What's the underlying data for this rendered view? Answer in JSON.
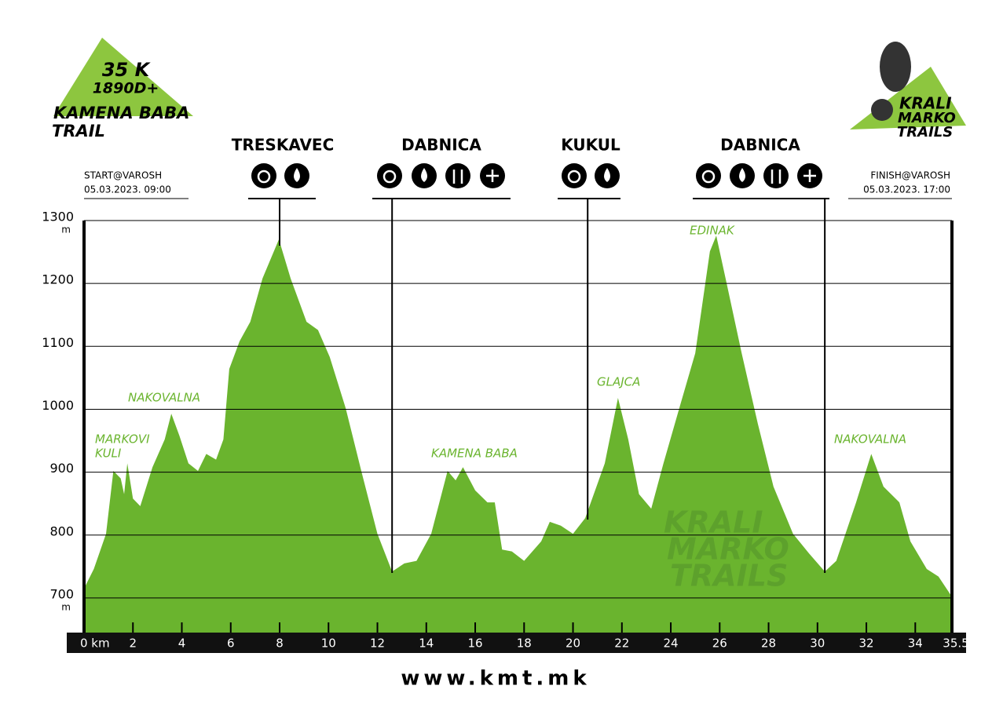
{
  "chart_data": {
    "type": "area",
    "logo": {
      "distance": "35 K",
      "elevation_gain": "1890D+",
      "name": "KAMENA BABA",
      "trail": "TRAIL"
    },
    "brand": [
      "KRALI",
      "MARKO",
      "TRAILS"
    ],
    "start": {
      "label": "START@VAROSH",
      "time": "05.03.2023. 09:00"
    },
    "finish": {
      "label": "FINISH@VAROSH",
      "time": "05.03.2023. 17:00"
    },
    "stations": [
      {
        "name": "TRESKAVEC",
        "km": 8.0
      },
      {
        "name": "DABNICA",
        "km": 12.6
      },
      {
        "name": "KUKUL",
        "km": 20.6
      },
      {
        "name": "DABNICA",
        "km": 30.3
      }
    ],
    "peaks": [
      "MARKOVI",
      "KULI",
      "NAKOVALNA",
      "KAMENA BABA",
      "GLAJCA",
      "EDINAK",
      "NAKOVALNA"
    ],
    "y_unit": "m",
    "color": "#6ab42e",
    "x": [
      0,
      0.4,
      0.9,
      1.2,
      1.5,
      1.64,
      1.77,
      2.0,
      2.3,
      2.8,
      3.3,
      3.57,
      3.9,
      4.27,
      4.66,
      5.0,
      5.4,
      5.7,
      5.94,
      6.36,
      6.8,
      7.3,
      7.97,
      8.45,
      9.1,
      9.57,
      10.05,
      10.7,
      11.34,
      12.0,
      12.6,
      13.1,
      13.6,
      14.2,
      14.87,
      15.2,
      15.5,
      16.0,
      16.5,
      16.8,
      17.1,
      17.5,
      18.0,
      18.7,
      19.05,
      19.5,
      20.0,
      20.5,
      21.3,
      21.84,
      22.26,
      22.7,
      23.2,
      23.7,
      24.35,
      25.0,
      25.6,
      25.86,
      26.28,
      26.9,
      27.56,
      28.2,
      29.0,
      29.65,
      30.3,
      30.77,
      31.58,
      32.2,
      32.7,
      33.35,
      33.8,
      34.47,
      34.95,
      35.5
    ],
    "y": [
      715,
      746,
      802,
      902,
      890,
      865,
      914,
      858,
      846,
      908,
      952,
      993,
      958,
      914,
      902,
      929,
      920,
      952,
      1064,
      1108,
      1139,
      1208,
      1270,
      1208,
      1139,
      1126,
      1083,
      1002,
      902,
      802,
      742,
      755,
      759,
      802,
      902,
      887,
      908,
      871,
      852,
      852,
      777,
      774,
      759,
      790,
      821,
      815,
      802,
      827,
      914,
      1018,
      952,
      865,
      842,
      914,
      1002,
      1089,
      1251,
      1276,
      1201,
      1089,
      977,
      877,
      802,
      771,
      742,
      759,
      852,
      929,
      877,
      852,
      790,
      746,
      734,
      702
    ],
    "xlim": [
      0,
      35.5
    ],
    "ylim": [
      645,
      1300
    ],
    "xticks": [
      {
        "value": 0,
        "label": "0 km"
      },
      2,
      4,
      6,
      8,
      10,
      12,
      14,
      16,
      18,
      20,
      22,
      24,
      26,
      28,
      30,
      32,
      34,
      35.5
    ],
    "yticks": [
      700,
      800,
      900,
      1000,
      1100,
      1200,
      1300
    ],
    "grid": true,
    "footer": "www.kmt.mk"
  }
}
